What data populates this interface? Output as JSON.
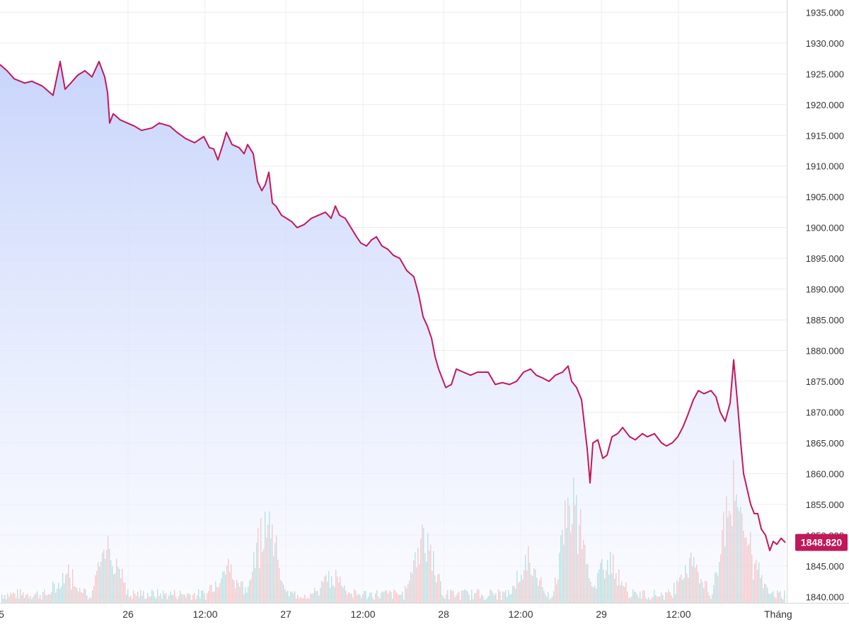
{
  "chart_data": {
    "type": "area",
    "title": "",
    "xlabel": "",
    "ylabel": "",
    "grid": true,
    "legend": "none",
    "colors": {
      "line": "#c2185b",
      "fill_top": "#c5d2fb",
      "fill_bottom": "#f7f9ff",
      "volume_up": "#26a69a",
      "volume_down": "#ef5350",
      "grid": "#ececec",
      "axis_text": "#333333",
      "price_label_bg": "#c2185b",
      "price_label_text": "#ffffff"
    },
    "ylim": [
      1839,
      1937
    ],
    "xlim": [
      0,
      1112
    ],
    "y_ticks": [
      "1935.000",
      "1930.000",
      "1925.000",
      "1920.000",
      "1915.000",
      "1910.000",
      "1905.000",
      "1900.000",
      "1895.000",
      "1890.000",
      "1885.000",
      "1880.000",
      "1875.000",
      "1870.000",
      "1865.000",
      "1860.000",
      "1855.000",
      "1850.000",
      "1845.000",
      "1840.000"
    ],
    "x_ticks": [
      {
        "label": "5",
        "x": 0
      },
      {
        "label": "26",
        "x": 181
      },
      {
        "label": "12:00",
        "x": 290
      },
      {
        "label": "27",
        "x": 404
      },
      {
        "label": "12:00",
        "x": 513
      },
      {
        "label": "28",
        "x": 627
      },
      {
        "label": "12:00",
        "x": 736
      },
      {
        "label": "29",
        "x": 850
      },
      {
        "label": "12:00",
        "x": 959
      },
      {
        "label": "Tháng",
        "x": 1100
      }
    ],
    "last_price": "1848.820",
    "series": [
      {
        "values": [
          [
            0,
            1926.5
          ],
          [
            10,
            1925.5
          ],
          [
            20,
            1924.2
          ],
          [
            35,
            1923.5
          ],
          [
            45,
            1923.8
          ],
          [
            60,
            1923.0
          ],
          [
            75,
            1921.5
          ],
          [
            85,
            1927.0
          ],
          [
            92,
            1922.5
          ],
          [
            100,
            1923.5
          ],
          [
            110,
            1924.8
          ],
          [
            120,
            1925.5
          ],
          [
            130,
            1924.5
          ],
          [
            140,
            1927.0
          ],
          [
            148,
            1924.5
          ],
          [
            152,
            1922.0
          ],
          [
            155,
            1917.0
          ],
          [
            160,
            1918.5
          ],
          [
            170,
            1917.5
          ],
          [
            180,
            1917.0
          ],
          [
            190,
            1916.5
          ],
          [
            200,
            1915.8
          ],
          [
            215,
            1916.2
          ],
          [
            225,
            1917.0
          ],
          [
            240,
            1916.5
          ],
          [
            250,
            1915.5
          ],
          [
            262,
            1914.5
          ],
          [
            275,
            1913.8
          ],
          [
            288,
            1914.8
          ],
          [
            296,
            1913.0
          ],
          [
            302,
            1912.8
          ],
          [
            308,
            1911.0
          ],
          [
            315,
            1913.5
          ],
          [
            320,
            1915.5
          ],
          [
            328,
            1913.5
          ],
          [
            338,
            1913.0
          ],
          [
            345,
            1912.0
          ],
          [
            350,
            1913.5
          ],
          [
            358,
            1912.0
          ],
          [
            364,
            1907.5
          ],
          [
            370,
            1906.0
          ],
          [
            375,
            1907.0
          ],
          [
            380,
            1909.0
          ],
          [
            385,
            1904.0
          ],
          [
            390,
            1903.5
          ],
          [
            398,
            1902.0
          ],
          [
            405,
            1901.5
          ],
          [
            412,
            1901.0
          ],
          [
            420,
            1900.0
          ],
          [
            430,
            1900.5
          ],
          [
            440,
            1901.5
          ],
          [
            450,
            1902.0
          ],
          [
            460,
            1902.5
          ],
          [
            468,
            1901.5
          ],
          [
            474,
            1903.5
          ],
          [
            480,
            1902.0
          ],
          [
            488,
            1901.5
          ],
          [
            496,
            1900.0
          ],
          [
            504,
            1898.5
          ],
          [
            510,
            1897.5
          ],
          [
            518,
            1897.0
          ],
          [
            525,
            1898.0
          ],
          [
            532,
            1898.5
          ],
          [
            540,
            1897.0
          ],
          [
            548,
            1896.5
          ],
          [
            556,
            1895.5
          ],
          [
            565,
            1895.0
          ],
          [
            575,
            1893.0
          ],
          [
            585,
            1892.0
          ],
          [
            592,
            1889.0
          ],
          [
            598,
            1885.5
          ],
          [
            604,
            1884.0
          ],
          [
            610,
            1882.0
          ],
          [
            615,
            1879.0
          ],
          [
            620,
            1877.0
          ],
          [
            625,
            1875.5
          ],
          [
            630,
            1874.0
          ],
          [
            638,
            1874.5
          ],
          [
            645,
            1877.0
          ],
          [
            655,
            1876.5
          ],
          [
            665,
            1876.0
          ],
          [
            675,
            1876.5
          ],
          [
            690,
            1876.5
          ],
          [
            700,
            1874.5
          ],
          [
            710,
            1874.8
          ],
          [
            720,
            1874.5
          ],
          [
            730,
            1875.0
          ],
          [
            740,
            1876.5
          ],
          [
            750,
            1877.0
          ],
          [
            758,
            1876.0
          ],
          [
            768,
            1875.5
          ],
          [
            776,
            1875.0
          ],
          [
            785,
            1876.0
          ],
          [
            795,
            1876.5
          ],
          [
            803,
            1877.5
          ],
          [
            808,
            1875.0
          ],
          [
            815,
            1874.0
          ],
          [
            822,
            1872.0
          ],
          [
            826,
            1868.0
          ],
          [
            830,
            1864.0
          ],
          [
            834,
            1858.5
          ],
          [
            838,
            1865.0
          ],
          [
            845,
            1865.5
          ],
          [
            852,
            1862.5
          ],
          [
            858,
            1863.0
          ],
          [
            865,
            1866.0
          ],
          [
            873,
            1866.5
          ],
          [
            880,
            1867.5
          ],
          [
            890,
            1866.0
          ],
          [
            898,
            1865.5
          ],
          [
            908,
            1866.5
          ],
          [
            915,
            1866.0
          ],
          [
            925,
            1866.5
          ],
          [
            935,
            1865.0
          ],
          [
            942,
            1864.5
          ],
          [
            950,
            1865.0
          ],
          [
            958,
            1866.0
          ],
          [
            965,
            1867.5
          ],
          [
            972,
            1869.5
          ],
          [
            980,
            1872.0
          ],
          [
            987,
            1873.5
          ],
          [
            995,
            1873.0
          ],
          [
            1005,
            1873.5
          ],
          [
            1012,
            1872.5
          ],
          [
            1018,
            1870.0
          ],
          [
            1025,
            1868.5
          ],
          [
            1032,
            1871.5
          ],
          [
            1037,
            1878.5
          ],
          [
            1042,
            1872.0
          ],
          [
            1047,
            1865.0
          ],
          [
            1051,
            1860.0
          ],
          [
            1056,
            1857.5
          ],
          [
            1061,
            1855.0
          ],
          [
            1066,
            1853.5
          ],
          [
            1071,
            1853.5
          ],
          [
            1076,
            1851.0
          ],
          [
            1082,
            1850.0
          ],
          [
            1088,
            1847.5
          ],
          [
            1093,
            1849.0
          ],
          [
            1098,
            1848.5
          ],
          [
            1104,
            1849.5
          ],
          [
            1110,
            1848.8
          ]
        ]
      }
    ]
  }
}
